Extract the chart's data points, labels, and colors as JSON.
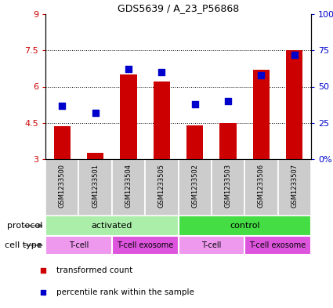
{
  "title": "GDS5639 / A_23_P56868",
  "samples": [
    "GSM1233500",
    "GSM1233501",
    "GSM1233504",
    "GSM1233505",
    "GSM1233502",
    "GSM1233503",
    "GSM1233506",
    "GSM1233507"
  ],
  "transformed_counts": [
    4.35,
    3.25,
    6.5,
    6.2,
    4.4,
    4.5,
    6.7,
    7.5
  ],
  "percentile_ranks": [
    37,
    32,
    62,
    60,
    38,
    40,
    58,
    72
  ],
  "bar_bottom": 3.0,
  "ylim_left": [
    3,
    9
  ],
  "ylim_right": [
    0,
    100
  ],
  "yticks_left": [
    3,
    4.5,
    6,
    7.5,
    9
  ],
  "yticks_right": [
    0,
    25,
    50,
    75,
    100
  ],
  "ytick_labels_left": [
    "3",
    "4.5",
    "6",
    "7.5",
    "9"
  ],
  "ytick_labels_right": [
    "0",
    "25",
    "50",
    "75",
    "100%"
  ],
  "bar_color": "#cc0000",
  "dot_color": "#0000cc",
  "protocol_groups": [
    {
      "label": "activated",
      "start": 0,
      "end": 4,
      "color": "#aaeea a"
    },
    {
      "label": "control",
      "start": 4,
      "end": 8,
      "color": "#44dd44"
    }
  ],
  "cell_type_groups": [
    {
      "label": "T-cell",
      "start": 0,
      "end": 2,
      "color": "#ee99ee"
    },
    {
      "label": "T-cell exosome",
      "start": 2,
      "end": 4,
      "color": "#dd55dd"
    },
    {
      "label": "T-cell",
      "start": 4,
      "end": 6,
      "color": "#ee99ee"
    },
    {
      "label": "T-cell exosome",
      "start": 6,
      "end": 8,
      "color": "#dd55dd"
    }
  ],
  "legend_items": [
    {
      "label": "transformed count",
      "color": "#cc0000"
    },
    {
      "label": "percentile rank within the sample",
      "color": "#0000cc"
    }
  ],
  "bar_width": 0.5,
  "dot_size": 35,
  "axis_label_color_left": "#cc0000",
  "axis_label_color_right": "#0000cc",
  "sample_box_color": "#cccccc",
  "background_color": "#ffffff"
}
